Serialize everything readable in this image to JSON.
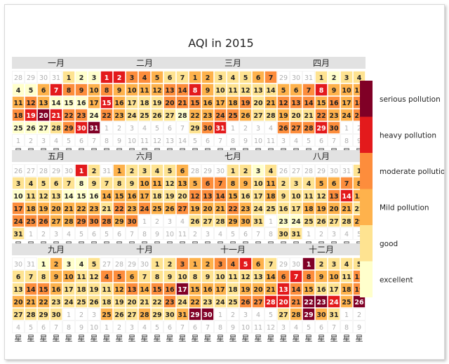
{
  "chart_data": {
    "type": "heatmap",
    "title": "AQI in 2015",
    "year": 2015,
    "week_starts_on": "sunday",
    "weekday_labels": [
      "星",
      "星",
      "星",
      "星",
      "星",
      "星",
      "星"
    ],
    "months": [
      {
        "label": "一月",
        "levels": [
          1,
          0,
          0,
          0,
          0,
          2,
          4,
          3,
          3,
          2,
          2,
          3,
          2,
          0,
          0,
          0,
          2,
          3,
          4,
          5,
          4,
          3,
          3,
          0,
          0,
          0,
          0,
          1,
          3,
          4,
          5,
          2,
          1,
          1,
          2,
          1,
          1,
          2,
          2,
          2,
          0,
          0,
          1,
          0,
          0,
          1,
          2,
          0,
          0,
          1,
          0,
          0,
          0,
          0,
          0,
          0,
          0,
          0,
          0
        ]
      },
      {
        "label": "二月",
        "levels": [
          4,
          4,
          3,
          3,
          2,
          1,
          1,
          3,
          2,
          2,
          2,
          2,
          3,
          3,
          4,
          2,
          1,
          1,
          1,
          3,
          3,
          3,
          2,
          1,
          1,
          1,
          1,
          0,
          0,
          3
        ]
      },
      {
        "label": "三月",
        "levels": [
          2,
          2,
          1,
          1,
          1,
          2,
          3,
          4,
          2,
          1,
          1,
          1,
          1,
          1,
          3,
          2,
          2,
          2,
          3,
          1,
          2,
          2,
          2,
          3,
          3,
          2,
          1,
          1,
          1,
          3,
          4,
          4,
          3,
          0,
          0,
          0,
          0,
          0,
          0,
          0,
          0,
          0
        ]
      },
      {
        "label": "四月",
        "levels": [
          1,
          0,
          1,
          1,
          2,
          2,
          3,
          4,
          2,
          2,
          2,
          3,
          3,
          3,
          2,
          3,
          2,
          3,
          2,
          1,
          1,
          3,
          2,
          2,
          3,
          3,
          3,
          3,
          4,
          3
        ]
      },
      {
        "label": "五月",
        "levels": [
          4,
          1,
          1,
          1,
          1,
          1,
          1,
          0,
          1,
          0,
          1,
          1,
          1,
          0,
          0,
          0,
          3,
          2,
          2,
          2,
          2,
          2,
          2,
          3,
          3,
          3,
          2,
          2,
          3,
          3,
          1
        ]
      },
      {
        "label": "六月",
        "levels": [
          2,
          1,
          1,
          1,
          1,
          2,
          1,
          1,
          1,
          2,
          2,
          1,
          2,
          2,
          2,
          2,
          2,
          1,
          1,
          1,
          1,
          3,
          2,
          3,
          2,
          2,
          3,
          3,
          2,
          3
        ]
      },
      {
        "label": "七月",
        "levels": [
          1,
          1,
          0,
          1,
          2,
          3,
          3,
          2,
          2,
          1,
          2,
          3,
          3,
          3,
          2,
          1,
          1,
          2,
          2,
          2,
          2,
          3,
          2,
          1,
          1,
          1,
          1,
          1,
          2,
          2,
          1
        ]
      },
      {
        "label": "八月",
        "levels": [
          1,
          1,
          1,
          1,
          2,
          2,
          3,
          2,
          1,
          1,
          1,
          1,
          3,
          4,
          2,
          1,
          1,
          2,
          2,
          2,
          2,
          1,
          0,
          0,
          1,
          1,
          1,
          1,
          2,
          1,
          1
        ]
      },
      {
        "label": "九月",
        "levels": [
          0,
          2,
          0,
          0,
          1,
          1,
          1,
          1,
          2,
          2,
          1,
          1,
          1,
          3,
          3,
          2,
          1,
          1,
          1,
          2,
          2,
          2,
          1,
          1,
          1,
          1,
          1,
          1,
          1,
          1
        ]
      },
      {
        "label": "十月",
        "levels": [
          1,
          1,
          3,
          3,
          3,
          2,
          1,
          1,
          1,
          1,
          1,
          2,
          3,
          2,
          3,
          3,
          5,
          1,
          1,
          1,
          1,
          1,
          3,
          1,
          2,
          1,
          1,
          2,
          1,
          1,
          2
        ]
      },
      {
        "label": "十一月",
        "levels": [
          2,
          2,
          3,
          3,
          4,
          2,
          1,
          1,
          1,
          1,
          1,
          1,
          1,
          2,
          2,
          2,
          2,
          1,
          2,
          2,
          2,
          2,
          1,
          1,
          1,
          3,
          3,
          4,
          5,
          5
        ]
      },
      {
        "label": "十二月",
        "levels": [
          5,
          1,
          1,
          1,
          1,
          3,
          4,
          3,
          2,
          2,
          1,
          3,
          4,
          3,
          2,
          1,
          1,
          2,
          3,
          4,
          3,
          5,
          5,
          4,
          2,
          5,
          1,
          2,
          5,
          2,
          1
        ]
      }
    ],
    "level_colors": [
      "#ffffcc",
      "#fee391",
      "#feb24c",
      "#fd8d3c",
      "#e31a1c",
      "#800026"
    ],
    "other_month_day_color": "#eeeeee",
    "legend": {
      "position": "right",
      "labels": [
        "excellent",
        "good",
        "Mild pollution",
        "moderate pollution",
        "heavy pollution",
        "serious pollution"
      ]
    }
  }
}
